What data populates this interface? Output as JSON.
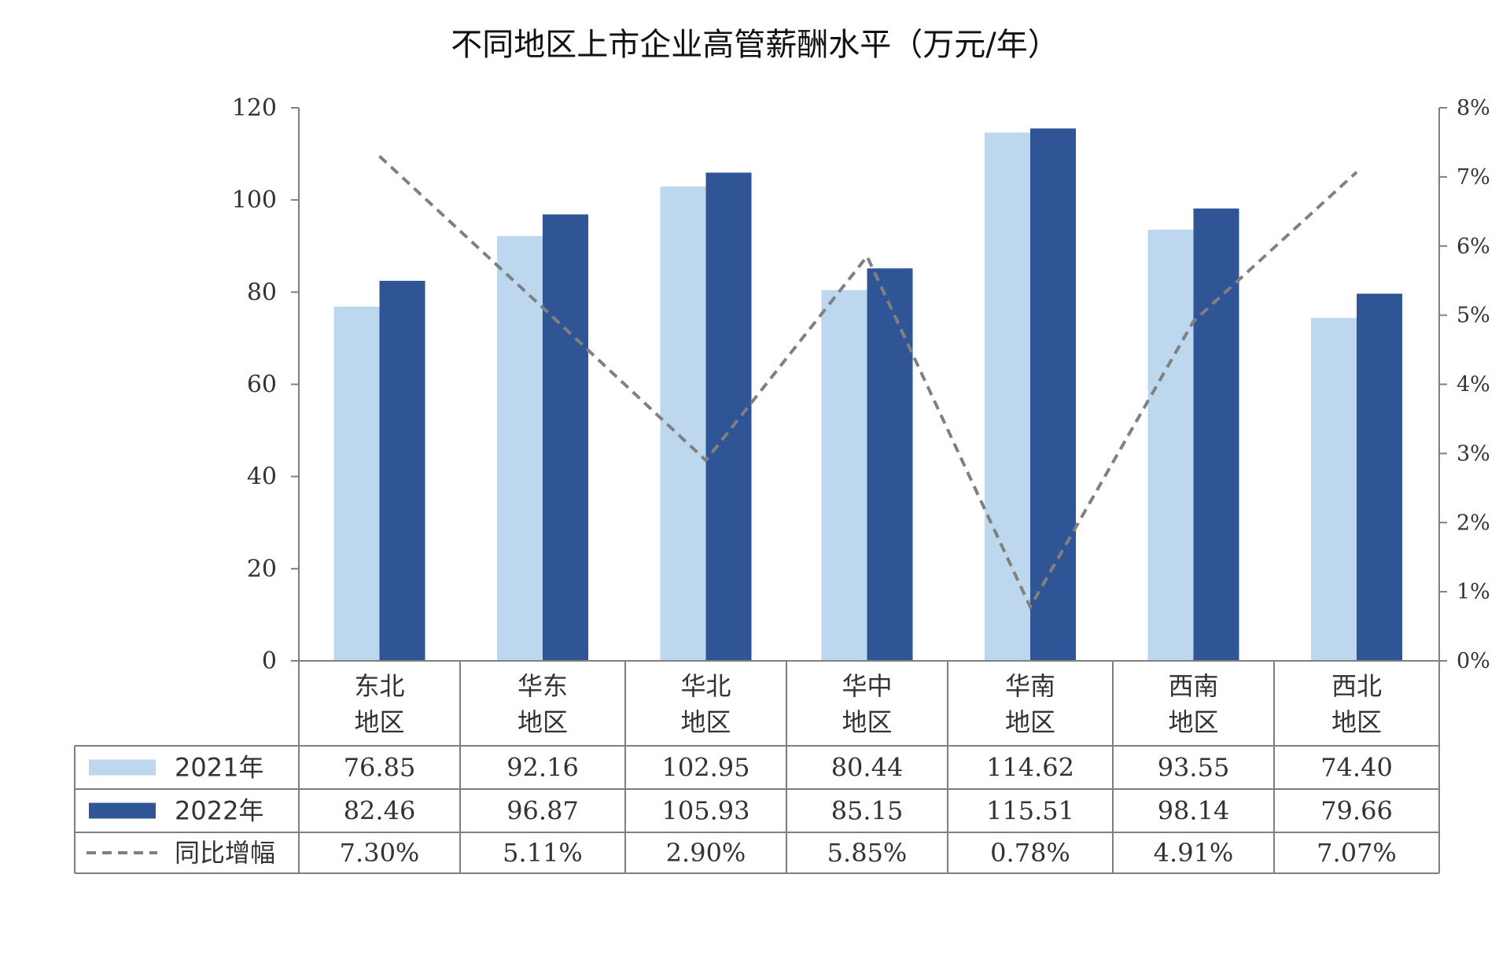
{
  "colors": {
    "series_2021": "#bdd7ee",
    "series_2022": "#2f5597",
    "line": "#808080",
    "grid": "#7f7f7f"
  },
  "chart_data": {
    "type": "bar",
    "title": "不同地区上市企业高管薪酬水平（万元/年）",
    "categories": [
      [
        "东北",
        "地区"
      ],
      [
        "华东",
        "地区"
      ],
      [
        "华北",
        "地区"
      ],
      [
        "华中",
        "地区"
      ],
      [
        "华南",
        "地区"
      ],
      [
        "西南",
        "地区"
      ],
      [
        "西北",
        "地区"
      ]
    ],
    "series": [
      {
        "name": "2021年",
        "values": [
          76.85,
          92.16,
          102.95,
          80.44,
          114.62,
          93.55,
          74.4
        ],
        "labels": [
          "76.85",
          "92.16",
          "102.95",
          "80.44",
          "114.62",
          "93.55",
          "74.40"
        ]
      },
      {
        "name": "2022年",
        "values": [
          82.46,
          96.87,
          105.93,
          85.15,
          115.51,
          98.14,
          79.66
        ],
        "labels": [
          "82.46",
          "96.87",
          "105.93",
          "85.15",
          "115.51",
          "98.14",
          "79.66"
        ]
      }
    ],
    "line_series": {
      "name": "同比增幅",
      "values": [
        7.3,
        5.11,
        2.9,
        5.85,
        0.78,
        4.91,
        7.07
      ],
      "labels": [
        "7.30%",
        "5.11%",
        "2.90%",
        "5.85%",
        "0.78%",
        "4.91%",
        "7.07%"
      ]
    },
    "y_left": {
      "ylim": [
        0,
        120
      ],
      "ticks": [
        "0",
        "20",
        "40",
        "60",
        "80",
        "100",
        "120"
      ]
    },
    "y_right": {
      "ylim": [
        0,
        8
      ],
      "ticks": [
        "0%",
        "1%",
        "2%",
        "3%",
        "4%",
        "5%",
        "6%",
        "7%",
        "8%"
      ]
    },
    "legend_placement": "data-table"
  }
}
